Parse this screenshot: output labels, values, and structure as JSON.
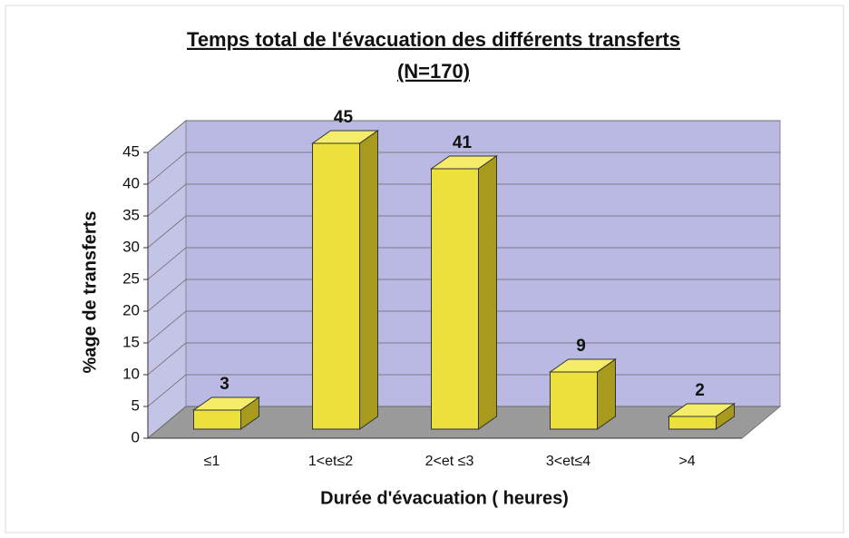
{
  "chart_data": {
    "type": "bar3d",
    "title": "Temps total de l'évacuation des différents  transferts",
    "subtitle": "(N=170)",
    "y_label": "%age de transferts",
    "x_label": "Durée d'évacuation ( heures)",
    "categories": [
      "≤1",
      "1<et≤2",
      "2<et ≤3",
      "3<et≤4",
      ">4"
    ],
    "values": [
      3,
      45,
      41,
      9,
      2
    ],
    "color": "#ece13c",
    "ylim": [
      0,
      45
    ],
    "yticks": [
      0,
      5,
      10,
      15,
      20,
      25,
      30,
      35,
      40,
      45
    ],
    "grid": true
  }
}
